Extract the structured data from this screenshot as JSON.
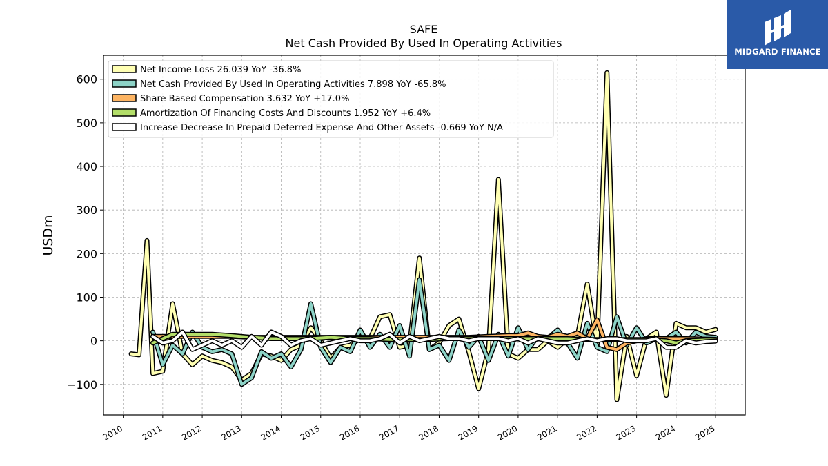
{
  "logo": {
    "text": "MIDGARD FINANCE",
    "bg_color": "#2a5aa8"
  },
  "chart_data": {
    "type": "line",
    "title": "SAFE",
    "subtitle": "Net Cash Provided By Used In Operating Activities",
    "ylabel": "USDm",
    "xlabel": "",
    "ylim": [
      -170,
      655
    ],
    "xlim": [
      2009.5,
      2025.75
    ],
    "yticks": [
      -100,
      0,
      100,
      200,
      300,
      400,
      500,
      600
    ],
    "ytick_labels": [
      "−100",
      "0",
      "100",
      "200",
      "300",
      "400",
      "500",
      "600"
    ],
    "xticks": [
      2010,
      2011,
      2012,
      2013,
      2014,
      2015,
      2016,
      2017,
      2018,
      2019,
      2020,
      2021,
      2022,
      2023,
      2024,
      2025
    ],
    "xtick_labels": [
      "2010",
      "2011",
      "2012",
      "2013",
      "2014",
      "2015",
      "2016",
      "2017",
      "2018",
      "2019",
      "2020",
      "2021",
      "2022",
      "2023",
      "2024",
      "2025"
    ],
    "grid": true,
    "legend_position": "top-left",
    "series": [
      {
        "name": "Net Income Loss  26.039 YoY -36.8%",
        "color": "#ffffb3",
        "x": [
          2010.2,
          2010.4,
          2010.5,
          2010.6,
          2010.75,
          2011.0,
          2011.25,
          2011.5,
          2011.75,
          2012.0,
          2012.25,
          2012.5,
          2012.75,
          2013.0,
          2013.25,
          2013.5,
          2013.75,
          2014.0,
          2014.25,
          2014.5,
          2014.75,
          2015.0,
          2015.25,
          2015.5,
          2015.75,
          2016.0,
          2016.25,
          2016.5,
          2016.75,
          2017.0,
          2017.25,
          2017.5,
          2017.75,
          2018.0,
          2018.25,
          2018.5,
          2018.75,
          2019.0,
          2019.25,
          2019.5,
          2019.75,
          2020.0,
          2020.25,
          2020.5,
          2020.75,
          2021.0,
          2021.25,
          2021.5,
          2021.75,
          2022.0,
          2022.25,
          2022.5,
          2022.75,
          2023.0,
          2023.25,
          2023.5,
          2023.75,
          2024.0,
          2024.25,
          2024.5,
          2024.75,
          2025.0
        ],
        "values": [
          -30,
          -32,
          100,
          230,
          -75,
          -70,
          85,
          -30,
          -55,
          -35,
          -45,
          -50,
          -60,
          -90,
          -75,
          -30,
          -35,
          -45,
          -20,
          -10,
          30,
          0,
          -40,
          -15,
          -10,
          5,
          5,
          55,
          60,
          -15,
          -10,
          190,
          -20,
          -5,
          35,
          50,
          -25,
          -110,
          -20,
          370,
          -30,
          -40,
          -20,
          -20,
          0,
          -15,
          5,
          10,
          130,
          -10,
          615,
          -135,
          10,
          -80,
          5,
          20,
          -125,
          40,
          30,
          30,
          20,
          26
        ]
      },
      {
        "name": "Net Cash Provided By Used In Operating Activities  7.898 YoY -65.8%",
        "color": "#8dd3c7",
        "x": [
          2010.75,
          2011.0,
          2011.25,
          2011.5,
          2011.75,
          2012.0,
          2012.25,
          2012.5,
          2012.75,
          2013.0,
          2013.25,
          2013.5,
          2013.75,
          2014.0,
          2014.25,
          2014.5,
          2014.75,
          2015.0,
          2015.25,
          2015.5,
          2015.75,
          2016.0,
          2016.25,
          2016.5,
          2016.75,
          2017.0,
          2017.25,
          2017.5,
          2017.75,
          2018.0,
          2018.25,
          2018.5,
          2018.75,
          2019.0,
          2019.25,
          2019.5,
          2019.75,
          2020.0,
          2020.25,
          2020.5,
          2020.75,
          2021.0,
          2021.25,
          2021.5,
          2021.75,
          2022.0,
          2022.25,
          2022.5,
          2022.75,
          2023.0,
          2023.25,
          2023.5,
          2023.75,
          2024.0,
          2024.25,
          2024.5,
          2024.75,
          2025.0
        ],
        "values": [
          20,
          -55,
          -10,
          -30,
          20,
          -15,
          -25,
          -20,
          -30,
          -100,
          -85,
          -25,
          -40,
          -30,
          -60,
          -20,
          85,
          -15,
          -50,
          -15,
          -25,
          25,
          -15,
          15,
          -15,
          35,
          -35,
          140,
          -20,
          -10,
          -45,
          25,
          -15,
          10,
          -45,
          15,
          -35,
          30,
          -20,
          10,
          5,
          25,
          -5,
          -40,
          40,
          -15,
          -25,
          55,
          -10,
          30,
          -5,
          5,
          5,
          20,
          -5,
          20,
          10,
          8
        ]
      },
      {
        "name": "Share Based Compensation  3.632 YoY +17.0%",
        "color": "#fdb462",
        "x": [
          2010.75,
          2011.25,
          2011.75,
          2012.25,
          2012.75,
          2013.25,
          2013.75,
          2014.25,
          2014.75,
          2015.25,
          2015.75,
          2016.25,
          2016.75,
          2017.25,
          2017.75,
          2018.25,
          2018.75,
          2019.25,
          2019.75,
          2020.0,
          2020.25,
          2020.5,
          2020.75,
          2021.0,
          2021.25,
          2021.5,
          2021.75,
          2022.0,
          2022.25,
          2022.5,
          2022.75,
          2023.25,
          2023.75,
          2024.25,
          2024.75,
          2025.0
        ],
        "values": [
          10,
          10,
          10,
          10,
          10,
          8,
          8,
          8,
          8,
          8,
          8,
          8,
          8,
          8,
          8,
          8,
          8,
          10,
          12,
          12,
          18,
          10,
          8,
          15,
          10,
          18,
          5,
          48,
          -15,
          -20,
          -5,
          5,
          5,
          5,
          4,
          3.6
        ]
      },
      {
        "name": "Amortization Of Financing Costs And Discounts  1.952 YoY +6.4%",
        "color": "#b3de69",
        "x": [
          2010.75,
          2011.25,
          2011.75,
          2012.25,
          2012.75,
          2013.25,
          2013.75,
          2014.25,
          2014.75,
          2015.25,
          2015.75,
          2016.25,
          2016.75,
          2017.25,
          2017.75,
          2018.25,
          2018.75,
          2019.25,
          2019.75,
          2020.25,
          2020.75,
          2021.25,
          2021.75,
          2022.25,
          2022.75,
          2023.25,
          2023.75,
          2024.0,
          2024.25,
          2024.75,
          2025.0
        ],
        "values": [
          -5,
          15,
          15,
          15,
          12,
          8,
          5,
          5,
          5,
          8,
          5,
          5,
          3,
          3,
          3,
          5,
          5,
          5,
          5,
          5,
          5,
          5,
          3,
          3,
          3,
          3,
          0,
          -5,
          0,
          2,
          2
        ]
      },
      {
        "name": "Increase Decrease In Prepaid Deferred Expense And Other Assets  -0.669 YoY N/A",
        "color": "#ffffff",
        "x": [
          2010.75,
          2011.0,
          2011.25,
          2011.5,
          2011.75,
          2012.0,
          2012.25,
          2012.5,
          2012.75,
          2013.0,
          2013.25,
          2013.5,
          2013.75,
          2014.0,
          2014.25,
          2014.5,
          2014.75,
          2015.0,
          2015.25,
          2015.5,
          2015.75,
          2016.0,
          2016.25,
          2016.5,
          2016.75,
          2017.0,
          2017.25,
          2017.5,
          2017.75,
          2018.0,
          2018.25,
          2018.5,
          2018.75,
          2019.0,
          2019.25,
          2019.5,
          2019.75,
          2020.0,
          2020.25,
          2020.5,
          2020.75,
          2021.0,
          2021.25,
          2021.5,
          2021.75,
          2022.0,
          2022.25,
          2022.5,
          2022.75,
          2023.0,
          2023.25,
          2023.5,
          2023.75,
          2024.0,
          2024.25,
          2024.5,
          2024.75,
          2025.0
        ],
        "values": [
          10,
          -5,
          0,
          20,
          -20,
          -10,
          0,
          -10,
          0,
          -15,
          10,
          -10,
          20,
          10,
          -10,
          0,
          5,
          -10,
          -5,
          0,
          5,
          0,
          0,
          5,
          15,
          -5,
          10,
          0,
          5,
          10,
          5,
          5,
          0,
          5,
          5,
          5,
          0,
          5,
          -5,
          5,
          0,
          -5,
          -5,
          0,
          5,
          0,
          5,
          5,
          0,
          0,
          0,
          5,
          -15,
          -15,
          0,
          -5,
          -2,
          -0.7
        ]
      }
    ]
  }
}
